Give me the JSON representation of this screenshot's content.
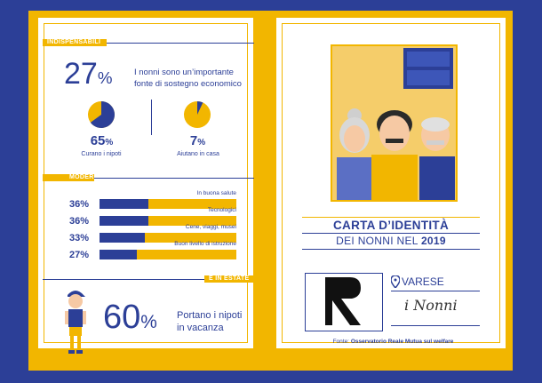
{
  "left_page": {
    "section1_label": "INDISPENSABILI",
    "main_stat": {
      "value": "27",
      "unit": "%",
      "text_line1": "I nonni sono un’importante",
      "text_line2": "fonte di sostegno economico"
    },
    "pies": [
      {
        "value": "65",
        "unit": "%",
        "fraction": 0.65,
        "label": "Curano i nipoti"
      },
      {
        "value": "7",
        "unit": "%",
        "fraction": 0.07,
        "label": "Aiutano in casa"
      }
    ],
    "section2_label": "MODERNI",
    "bars": [
      {
        "label": "In buona salute",
        "value_text": "36%",
        "value": 36
      },
      {
        "label": "Tecnologici",
        "value_text": "36%",
        "value": 36
      },
      {
        "label": "Cene, viaggi, musei",
        "value_text": "33%",
        "value": 33
      },
      {
        "label": "Buon livello di istruzione",
        "value_text": "27%",
        "value": 27
      }
    ],
    "section3_label": "E IN ESTATE",
    "summer_stat": {
      "value": "60",
      "unit": "%",
      "text_line1": "Portano i nipoti",
      "text_line2": "in vacanza"
    }
  },
  "right_page": {
    "title_line1": "CARTA D’IDENTITÀ",
    "title_line2_prefix": "DEI NONNI NEL",
    "title_line2_year": "2019",
    "city": "VARESE",
    "signature": "i Nonni",
    "source_prefix": "Fonte:",
    "source_name": "Osservatorio Reale Mutua sul welfare"
  },
  "colors": {
    "blue": "#2c3f97",
    "yellow": "#f2b600"
  }
}
